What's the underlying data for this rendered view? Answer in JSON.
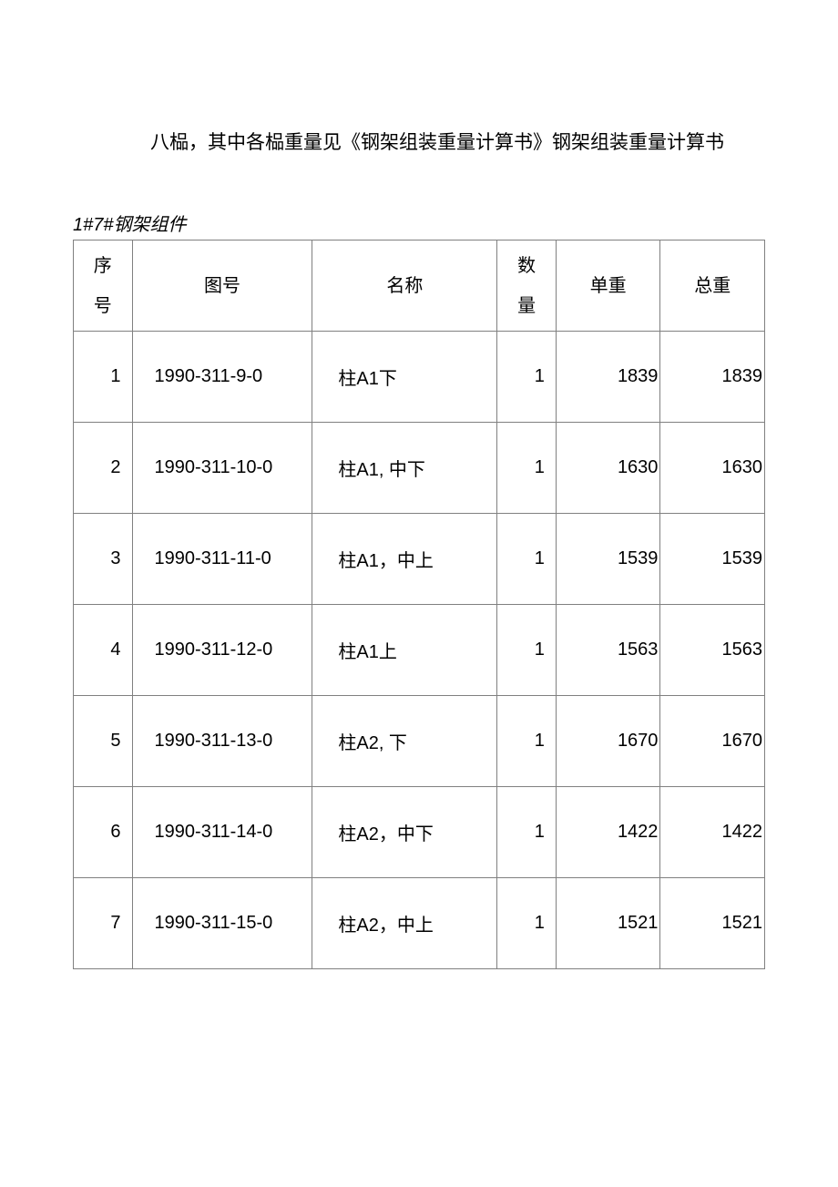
{
  "heading": "八榀，其中各榀重量见《钢架组装重量计算书》钢架组装重量计算书",
  "subheading": "1#7#钢架组件",
  "table": {
    "columns": {
      "seq": "序号",
      "seq_line1": "序",
      "seq_line2": "号",
      "drawing": "图号",
      "name": "名称",
      "qty": "数量",
      "qty_line1": "数",
      "qty_line2": "量",
      "unit_weight": "单重",
      "total_weight": "总重"
    },
    "rows": [
      {
        "seq": "1",
        "drawing": "1990-311-9-0",
        "name": "柱A1下",
        "qty": "1",
        "unit": "1839",
        "total": "1839"
      },
      {
        "seq": "2",
        "drawing": "1990-311-10-0",
        "name": "柱A1, 中下",
        "qty": "1",
        "unit": "1630",
        "total": "1630"
      },
      {
        "seq": "3",
        "drawing": "1990-311-11-0",
        "name": "柱A1，中上",
        "qty": "1",
        "unit": "1539",
        "total": "1539"
      },
      {
        "seq": "4",
        "drawing": "1990-311-12-0",
        "name": "柱A1上",
        "qty": "1",
        "unit": "1563",
        "total": "1563"
      },
      {
        "seq": "5",
        "drawing": "1990-311-13-0",
        "name": "柱A2, 下",
        "qty": "1",
        "unit": "1670",
        "total": "1670"
      },
      {
        "seq": "6",
        "drawing": "1990-311-14-0",
        "name": "柱A2，中下",
        "qty": "1",
        "unit": "1422",
        "total": "1422"
      },
      {
        "seq": "7",
        "drawing": "1990-311-15-0",
        "name": "柱A2，中上",
        "qty": "1",
        "unit": "1521",
        "total": "1521"
      }
    ]
  },
  "style": {
    "background_color": "#ffffff",
    "border_color": "#808080",
    "text_color": "#000000",
    "font_size_body": 20,
    "font_size_heading": 21
  }
}
